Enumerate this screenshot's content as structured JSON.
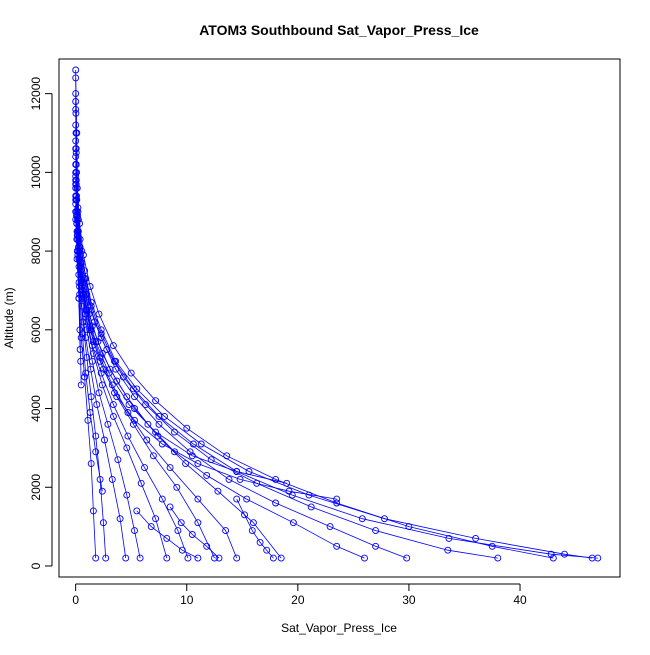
{
  "chart_data": {
    "type": "line",
    "title": "ATOM3 Southbound Sat_Vapor_Press_Ice",
    "xlabel": "Sat_Vapor_Press_Ice",
    "ylabel": "Altitude (m)",
    "xlim": [
      -1.5,
      49.0
    ],
    "ylim": [
      -280,
      12880
    ],
    "x_ticks": [
      0,
      10,
      20,
      30,
      40
    ],
    "y_ticks": [
      0,
      2000,
      4000,
      6000,
      8000,
      10000,
      12000
    ],
    "x_tick_labels": [
      "0",
      "10",
      "20",
      "30",
      "40"
    ],
    "y_tick_labels": [
      "0",
      "2000",
      "4000",
      "6000",
      "8000",
      "10000",
      "12000"
    ],
    "grid": false,
    "legend": "none",
    "marker": "open-circle",
    "series_color": "#0000ff",
    "series": [
      {
        "x": [
          0.0,
          0.02,
          0.05,
          0.12,
          0.25,
          0.55,
          0.9,
          1.4,
          2.3,
          3.5,
          5.2,
          7.5,
          10.6,
          14.5,
          19.5,
          25.8,
          33.6,
          42.8,
          47.0
        ],
        "y": [
          12600,
          11500,
          10500,
          9600,
          8800,
          8000,
          7300,
          6600,
          5900,
          5200,
          4500,
          3800,
          3100,
          2400,
          1800,
          1200,
          700,
          300,
          200
        ]
      },
      {
        "x": [
          0.0,
          0.03,
          0.08,
          0.2,
          0.4,
          0.8,
          1.4,
          2.3,
          3.6,
          5.5,
          8.0,
          11.3,
          15.6,
          21.0,
          27.8,
          36.0,
          44.0,
          46.5
        ],
        "y": [
          12000,
          11000,
          10000,
          9100,
          8300,
          7500,
          6700,
          6000,
          5200,
          4500,
          3800,
          3100,
          2400,
          1800,
          1200,
          700,
          300,
          200
        ]
      },
      {
        "x": [
          0.0,
          0.05,
          0.15,
          0.35,
          0.7,
          1.3,
          2.1,
          3.4,
          5.0,
          7.2,
          10.0,
          13.6,
          18.0,
          23.5,
          30.0,
          37.5,
          43.0
        ],
        "y": [
          11600,
          10600,
          9600,
          8700,
          7900,
          7100,
          6400,
          5600,
          4900,
          4200,
          3500,
          2800,
          2200,
          1600,
          1000,
          500,
          200
        ]
      },
      {
        "x": [
          0.0,
          0.04,
          0.1,
          0.25,
          0.55,
          1.0,
          1.7,
          2.8,
          4.3,
          6.3,
          8.9,
          12.2,
          16.3,
          21.2,
          27.0,
          33.5,
          38.0
        ],
        "y": [
          11200,
          10200,
          9300,
          8500,
          7700,
          6900,
          6200,
          5500,
          4800,
          4100,
          3400,
          2700,
          2100,
          1500,
          900,
          400,
          200
        ]
      },
      {
        "x": [
          0.0,
          0.06,
          0.18,
          0.4,
          0.8,
          1.4,
          2.3,
          3.6,
          5.3,
          7.5,
          10.3,
          13.8,
          18.0,
          22.9,
          27.0,
          29.8
        ],
        "y": [
          10800,
          9800,
          8900,
          8100,
          7300,
          6500,
          5800,
          5000,
          4300,
          3600,
          2900,
          2200,
          1600,
          1000,
          500,
          200
        ]
      },
      {
        "x": [
          0.0,
          0.05,
          0.15,
          0.35,
          0.7,
          1.2,
          2.0,
          3.1,
          4.6,
          6.5,
          8.9,
          11.8,
          15.4,
          19.6,
          23.5,
          26.0
        ],
        "y": [
          10600,
          9700,
          8800,
          8000,
          7200,
          6400,
          5700,
          5000,
          4300,
          3600,
          2900,
          2300,
          1700,
          1100,
          500,
          200
        ]
      },
      {
        "x": [
          0.0,
          0.08,
          0.2,
          0.45,
          0.9,
          1.5,
          2.4,
          3.7,
          5.3,
          7.4,
          9.9,
          12.8,
          16.0,
          18.5
        ],
        "y": [
          10400,
          9400,
          8500,
          7700,
          6900,
          6100,
          5400,
          4700,
          4000,
          3300,
          2600,
          1900,
          1100,
          200
        ]
      },
      {
        "x": [
          0.0,
          0.07,
          0.2,
          0.42,
          0.85,
          1.4,
          2.2,
          3.3,
          4.7,
          6.4,
          8.5,
          11.0,
          13.5,
          14.5
        ],
        "y": [
          10200,
          9300,
          8400,
          7600,
          6800,
          6000,
          5300,
          4600,
          3900,
          3200,
          2500,
          1700,
          900,
          200
        ]
      },
      {
        "x": [
          0.0,
          0.1,
          0.25,
          0.5,
          0.95,
          1.6,
          2.5,
          3.7,
          5.2,
          7.0,
          9.1,
          11.0,
          12.5
        ],
        "y": [
          10000,
          9000,
          8100,
          7300,
          6500,
          5700,
          5000,
          4300,
          3600,
          2800,
          2000,
          1100,
          200
        ]
      },
      {
        "x": [
          0.0,
          0.08,
          0.22,
          0.5,
          0.9,
          1.5,
          2.3,
          3.4,
          4.7,
          6.2,
          7.8,
          9.2,
          10.1
        ],
        "y": [
          9800,
          8900,
          8000,
          7200,
          6400,
          5600,
          4900,
          4100,
          3300,
          2500,
          1700,
          900,
          200
        ]
      },
      {
        "x": [
          0.0,
          0.1,
          0.3,
          0.6,
          1.0,
          1.6,
          2.4,
          3.4,
          4.6,
          5.9,
          7.2,
          8.2
        ],
        "y": [
          9600,
          8700,
          7800,
          7000,
          6200,
          5400,
          4600,
          3800,
          3000,
          2100,
          1200,
          200
        ]
      },
      {
        "x": [
          0.0,
          0.12,
          0.3,
          0.6,
          1.0,
          1.5,
          2.1,
          2.9,
          3.8,
          4.6,
          5.3,
          5.8
        ],
        "y": [
          9400,
          8500,
          7600,
          6800,
          6000,
          5200,
          4400,
          3600,
          2700,
          1800,
          900,
          200
        ]
      },
      {
        "x": [
          0.0,
          0.1,
          0.28,
          0.55,
          0.9,
          1.35,
          1.9,
          2.6,
          3.3,
          4.0,
          4.5
        ],
        "y": [
          9200,
          8300,
          7400,
          6600,
          5800,
          5000,
          4100,
          3200,
          2200,
          1200,
          200
        ]
      },
      {
        "x": [
          0.0,
          0.15,
          0.35,
          0.65,
          1.0,
          1.4,
          1.8,
          2.2,
          2.5,
          2.7
        ],
        "y": [
          9000,
          8000,
          7100,
          6200,
          5300,
          4300,
          3300,
          2200,
          1100,
          200
        ]
      },
      {
        "x": [
          0.0,
          0.12,
          0.3,
          0.5,
          0.8,
          1.1,
          1.4,
          1.6,
          1.8
        ],
        "y": [
          8800,
          7800,
          6800,
          5800,
          4800,
          3700,
          2600,
          1400,
          200
        ]
      },
      {
        "x": [
          0.0,
          0.1,
          0.2,
          0.3,
          0.38,
          0.45,
          0.5
        ],
        "y": [
          12400,
          11000,
          9000,
          7200,
          6000,
          5200,
          4600
        ]
      },
      {
        "x": [
          0.0,
          0.05,
          0.15,
          0.28,
          0.4
        ],
        "y": [
          11800,
          10200,
          8400,
          6800,
          5500
        ]
      },
      {
        "x": [
          0.0,
          0.08,
          0.2,
          0.35,
          0.6,
          0.9,
          1.3,
          1.8,
          2.4
        ],
        "y": [
          9900,
          8900,
          7900,
          6900,
          5900,
          4900,
          3900,
          2900,
          1900
        ]
      },
      {
        "x": [
          0.0,
          0.1,
          0.3,
          0.7,
          1.3,
          2.2,
          3.5,
          5.3,
          7.8,
          11.0,
          14.8,
          19.2,
          23.5
        ],
        "y": [
          9700,
          8700,
          7800,
          6900,
          6000,
          5200,
          4400,
          3700,
          3100,
          2600,
          2200,
          1900,
          1700
        ]
      },
      {
        "x": [
          0.0,
          0.2,
          0.5,
          1.0,
          1.8,
          3.0,
          4.8,
          7.2,
          10.5,
          14.5,
          19.0
        ],
        "y": [
          9300,
          8300,
          7400,
          6500,
          5700,
          4900,
          4100,
          3400,
          2800,
          2400,
          2100
        ]
      },
      {
        "x": [
          8.5,
          9.5,
          10.5,
          11.8,
          12.9
        ],
        "y": [
          1500,
          1100,
          800,
          500,
          200
        ]
      },
      {
        "x": [
          14.5,
          15.2,
          15.9,
          16.6,
          17.2,
          17.8
        ],
        "y": [
          1700,
          1300,
          900,
          600,
          400,
          200
        ]
      },
      {
        "x": [
          5.5,
          6.8,
          8.2,
          9.6,
          11.0
        ],
        "y": [
          1400,
          1000,
          700,
          400,
          200
        ]
      }
    ]
  }
}
